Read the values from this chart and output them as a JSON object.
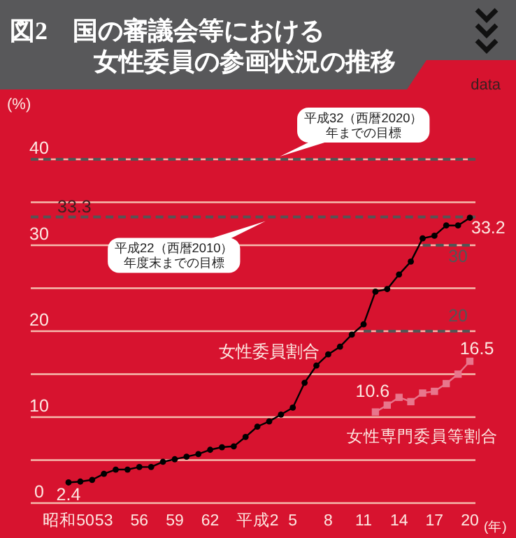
{
  "chart_data": {
    "type": "line",
    "title": "図2　国の審議会等における女性委員の参画状況の推移",
    "xlabel": "(年)",
    "ylabel": "(%)",
    "annotations": [
      "data",
      {
        "text": "33.3",
        "y": 33.3
      }
    ],
    "categories": [
      "昭和50",
      null,
      null,
      "53",
      null,
      null,
      "56",
      null,
      null,
      "59",
      null,
      null,
      "62",
      null,
      null,
      null,
      "平成2",
      null,
      null,
      "5",
      null,
      null,
      "8",
      null,
      null,
      "11",
      null,
      null,
      "14",
      null,
      null,
      "17",
      null,
      null,
      "20"
    ],
    "series": [
      {
        "name": "女性委員割合",
        "color": "#000000",
        "marker": "circle",
        "values": [
          2.4,
          2.5,
          2.7,
          3.4,
          3.9,
          3.9,
          4.2,
          4.2,
          4.8,
          5.1,
          5.4,
          5.7,
          6.2,
          6.5,
          6.6,
          7.7,
          8.9,
          9.5,
          10.3,
          11.1,
          14.0,
          16.0,
          17.3,
          18.2,
          19.6,
          20.8,
          24.6,
          24.9,
          26.6,
          28.1,
          30.8,
          31.1,
          32.3,
          32.3,
          33.2
        ],
        "value_labels": [
          "2.4",
          null,
          null,
          null,
          null,
          null,
          null,
          null,
          null,
          null,
          null,
          null,
          null,
          null,
          null,
          null,
          null,
          null,
          null,
          null,
          null,
          null,
          null,
          null,
          null,
          null,
          null,
          null,
          null,
          null,
          null,
          null,
          null,
          null,
          "33.2"
        ]
      },
      {
        "name": "女性専門委員等割合",
        "color": "#e8768c",
        "marker": "square",
        "values": [
          null,
          null,
          null,
          null,
          null,
          null,
          null,
          null,
          null,
          null,
          null,
          null,
          null,
          null,
          null,
          null,
          null,
          null,
          null,
          null,
          null,
          null,
          null,
          null,
          null,
          null,
          10.6,
          11.4,
          12.3,
          11.8,
          12.8,
          13.0,
          13.9,
          15.0,
          16.5
        ],
        "value_labels": [
          null,
          null,
          null,
          null,
          null,
          null,
          null,
          null,
          null,
          null,
          null,
          null,
          null,
          null,
          null,
          null,
          null,
          null,
          null,
          null,
          null,
          null,
          null,
          null,
          null,
          null,
          "10.6",
          null,
          null,
          null,
          null,
          null,
          null,
          null,
          "16.5"
        ]
      },
      {
        "color": "#555555",
        "line_style": "dashed",
        "marker": "none",
        "values": [
          null,
          null,
          null,
          null,
          null,
          null,
          null,
          null,
          null,
          null,
          null,
          null,
          null,
          null,
          null,
          null,
          null,
          null,
          null,
          null,
          null,
          null,
          null,
          null,
          null,
          null,
          null,
          null,
          null,
          null,
          30,
          30,
          30,
          30,
          30
        ],
        "value_labels": [
          null,
          null,
          null,
          null,
          null,
          null,
          null,
          null,
          null,
          null,
          null,
          null,
          null,
          null,
          null,
          null,
          null,
          null,
          null,
          null,
          null,
          null,
          null,
          null,
          null,
          null,
          null,
          null,
          null,
          null,
          null,
          null,
          null,
          "30",
          null
        ]
      },
      {
        "color": "#555555",
        "line_style": "dashed",
        "marker": "none",
        "values": [
          null,
          null,
          null,
          null,
          null,
          null,
          null,
          null,
          null,
          null,
          null,
          null,
          null,
          null,
          null,
          null,
          null,
          null,
          null,
          null,
          null,
          null,
          null,
          null,
          null,
          20,
          20,
          20,
          20,
          20,
          20,
          20,
          20,
          20,
          20
        ],
        "value_labels": [
          null,
          null,
          null,
          null,
          null,
          null,
          null,
          null,
          null,
          null,
          null,
          null,
          null,
          null,
          null,
          null,
          null,
          null,
          null,
          null,
          null,
          null,
          null,
          null,
          null,
          null,
          null,
          null,
          null,
          null,
          null,
          null,
          null,
          "20",
          null
        ]
      }
    ],
    "ylim": [
      0,
      40
    ],
    "yticks": [
      0,
      {
        "value": 5,
        "label": null
      },
      10,
      {
        "value": 15,
        "label": null
      },
      20,
      {
        "value": 25,
        "label": null
      },
      30,
      {
        "value": 35,
        "label": null
      },
      40
    ],
    "grid": "y",
    "ref_lines": [
      {
        "axis": "y",
        "value": 40,
        "label": "平成32（西暦2020）年までの目標",
        "color": "#555555",
        "line_style": "dashed"
      },
      {
        "axis": "y",
        "value": 33.3,
        "label": "平成22（西暦2010）年度末までの目標",
        "color": "#555555",
        "line_style": "dashed"
      }
    ]
  }
}
